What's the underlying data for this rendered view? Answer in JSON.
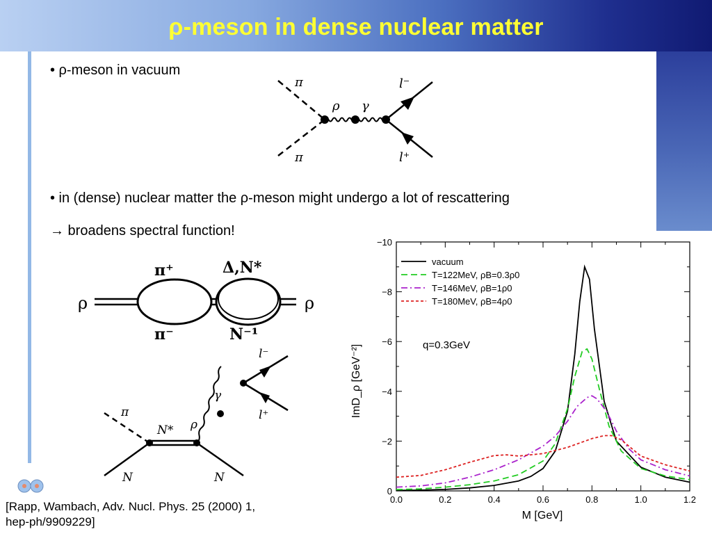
{
  "title": "ρ-meson in dense nuclear matter",
  "bullets": {
    "b1": "• ρ-meson in vacuum",
    "b2": "• in (dense) nuclear matter the ρ-meson might undergo a lot of rescattering",
    "b3": "→ broadens spectral function!"
  },
  "citation": {
    "line1": "[Rapp, Wambach, Adv. Nucl. Phys. 25 (2000) 1,",
    "line2": "hep-ph/9909229]"
  },
  "diagram_vacuum": {
    "pi_top": "π",
    "pi_bottom": "π",
    "rho": "ρ",
    "gamma": "γ",
    "l_minus": "l⁻",
    "l_plus": "l⁺"
  },
  "diagram_loops": {
    "rho_left": "ρ",
    "rho_right": "ρ",
    "pi_plus": "π⁺",
    "pi_minus": "π⁻",
    "delta_n": "Δ,N*",
    "n_inverse": "N⁻¹"
  },
  "diagram_nstar": {
    "pi": "π",
    "nstar": "N*",
    "rho": "ρ",
    "gamma": "γ",
    "l_minus": "l⁻",
    "l_plus": "l⁺",
    "n_left": "N",
    "n_right": "N"
  },
  "chart_data": {
    "type": "line",
    "xlabel": "M [GeV]",
    "ylabel": "ImD_ρ  [GeV⁻²]",
    "xlim": [
      0.0,
      1.2
    ],
    "ylim": [
      0,
      -10
    ],
    "xticks": [
      "0.0",
      "0.2",
      "0.4",
      "0.6",
      "0.8",
      "1.0",
      "1.2"
    ],
    "yticks": [
      "0",
      "−2",
      "−4",
      "−6",
      "−8",
      "−10"
    ],
    "annotation": "q=0.3GeV",
    "legend_position": "top-left",
    "series": [
      {
        "name": "vacuum",
        "color": "#000000",
        "dash": "",
        "x": [
          0.0,
          0.1,
          0.2,
          0.3,
          0.4,
          0.5,
          0.55,
          0.6,
          0.65,
          0.7,
          0.73,
          0.75,
          0.77,
          0.79,
          0.81,
          0.85,
          0.9,
          1.0,
          1.1,
          1.2
        ],
        "y": [
          -0.02,
          -0.03,
          -0.06,
          -0.12,
          -0.22,
          -0.4,
          -0.58,
          -0.9,
          -1.6,
          -3.2,
          -5.5,
          -7.6,
          -9.0,
          -8.5,
          -6.5,
          -3.6,
          -2.0,
          -0.95,
          -0.55,
          -0.35
        ]
      },
      {
        "name": "T=122MeV, ρB=0.3ρ0",
        "color": "#22cc22",
        "dash": "9,5",
        "x": [
          0.0,
          0.1,
          0.2,
          0.3,
          0.4,
          0.5,
          0.6,
          0.65,
          0.7,
          0.73,
          0.76,
          0.78,
          0.8,
          0.83,
          0.87,
          0.92,
          1.0,
          1.1,
          1.2
        ],
        "y": [
          -0.05,
          -0.08,
          -0.15,
          -0.25,
          -0.4,
          -0.65,
          -1.2,
          -1.9,
          -3.3,
          -4.6,
          -5.6,
          -5.7,
          -5.3,
          -4.1,
          -2.6,
          -1.6,
          -0.9,
          -0.6,
          -0.45
        ]
      },
      {
        "name": "T=146MeV, ρB=1ρ0",
        "color": "#aa22cc",
        "dash": "9,4,2,4",
        "x": [
          0.0,
          0.1,
          0.2,
          0.3,
          0.4,
          0.5,
          0.6,
          0.65,
          0.7,
          0.74,
          0.78,
          0.8,
          0.82,
          0.86,
          0.9,
          0.95,
          1.0,
          1.1,
          1.2
        ],
        "y": [
          -0.15,
          -0.2,
          -0.32,
          -0.55,
          -0.85,
          -1.25,
          -1.8,
          -2.2,
          -2.8,
          -3.4,
          -3.75,
          -3.82,
          -3.7,
          -3.2,
          -2.4,
          -1.7,
          -1.25,
          -0.85,
          -0.6
        ]
      },
      {
        "name": "T=180MeV, ρB=4ρ0",
        "color": "#dd2222",
        "dash": "4,3",
        "x": [
          0.0,
          0.1,
          0.2,
          0.3,
          0.4,
          0.45,
          0.5,
          0.6,
          0.7,
          0.8,
          0.85,
          0.88,
          0.92,
          1.0,
          1.1,
          1.2
        ],
        "y": [
          -0.55,
          -0.62,
          -0.85,
          -1.15,
          -1.42,
          -1.45,
          -1.4,
          -1.5,
          -1.75,
          -2.1,
          -2.22,
          -2.22,
          -2.05,
          -1.4,
          -1.05,
          -0.8
        ]
      }
    ]
  }
}
